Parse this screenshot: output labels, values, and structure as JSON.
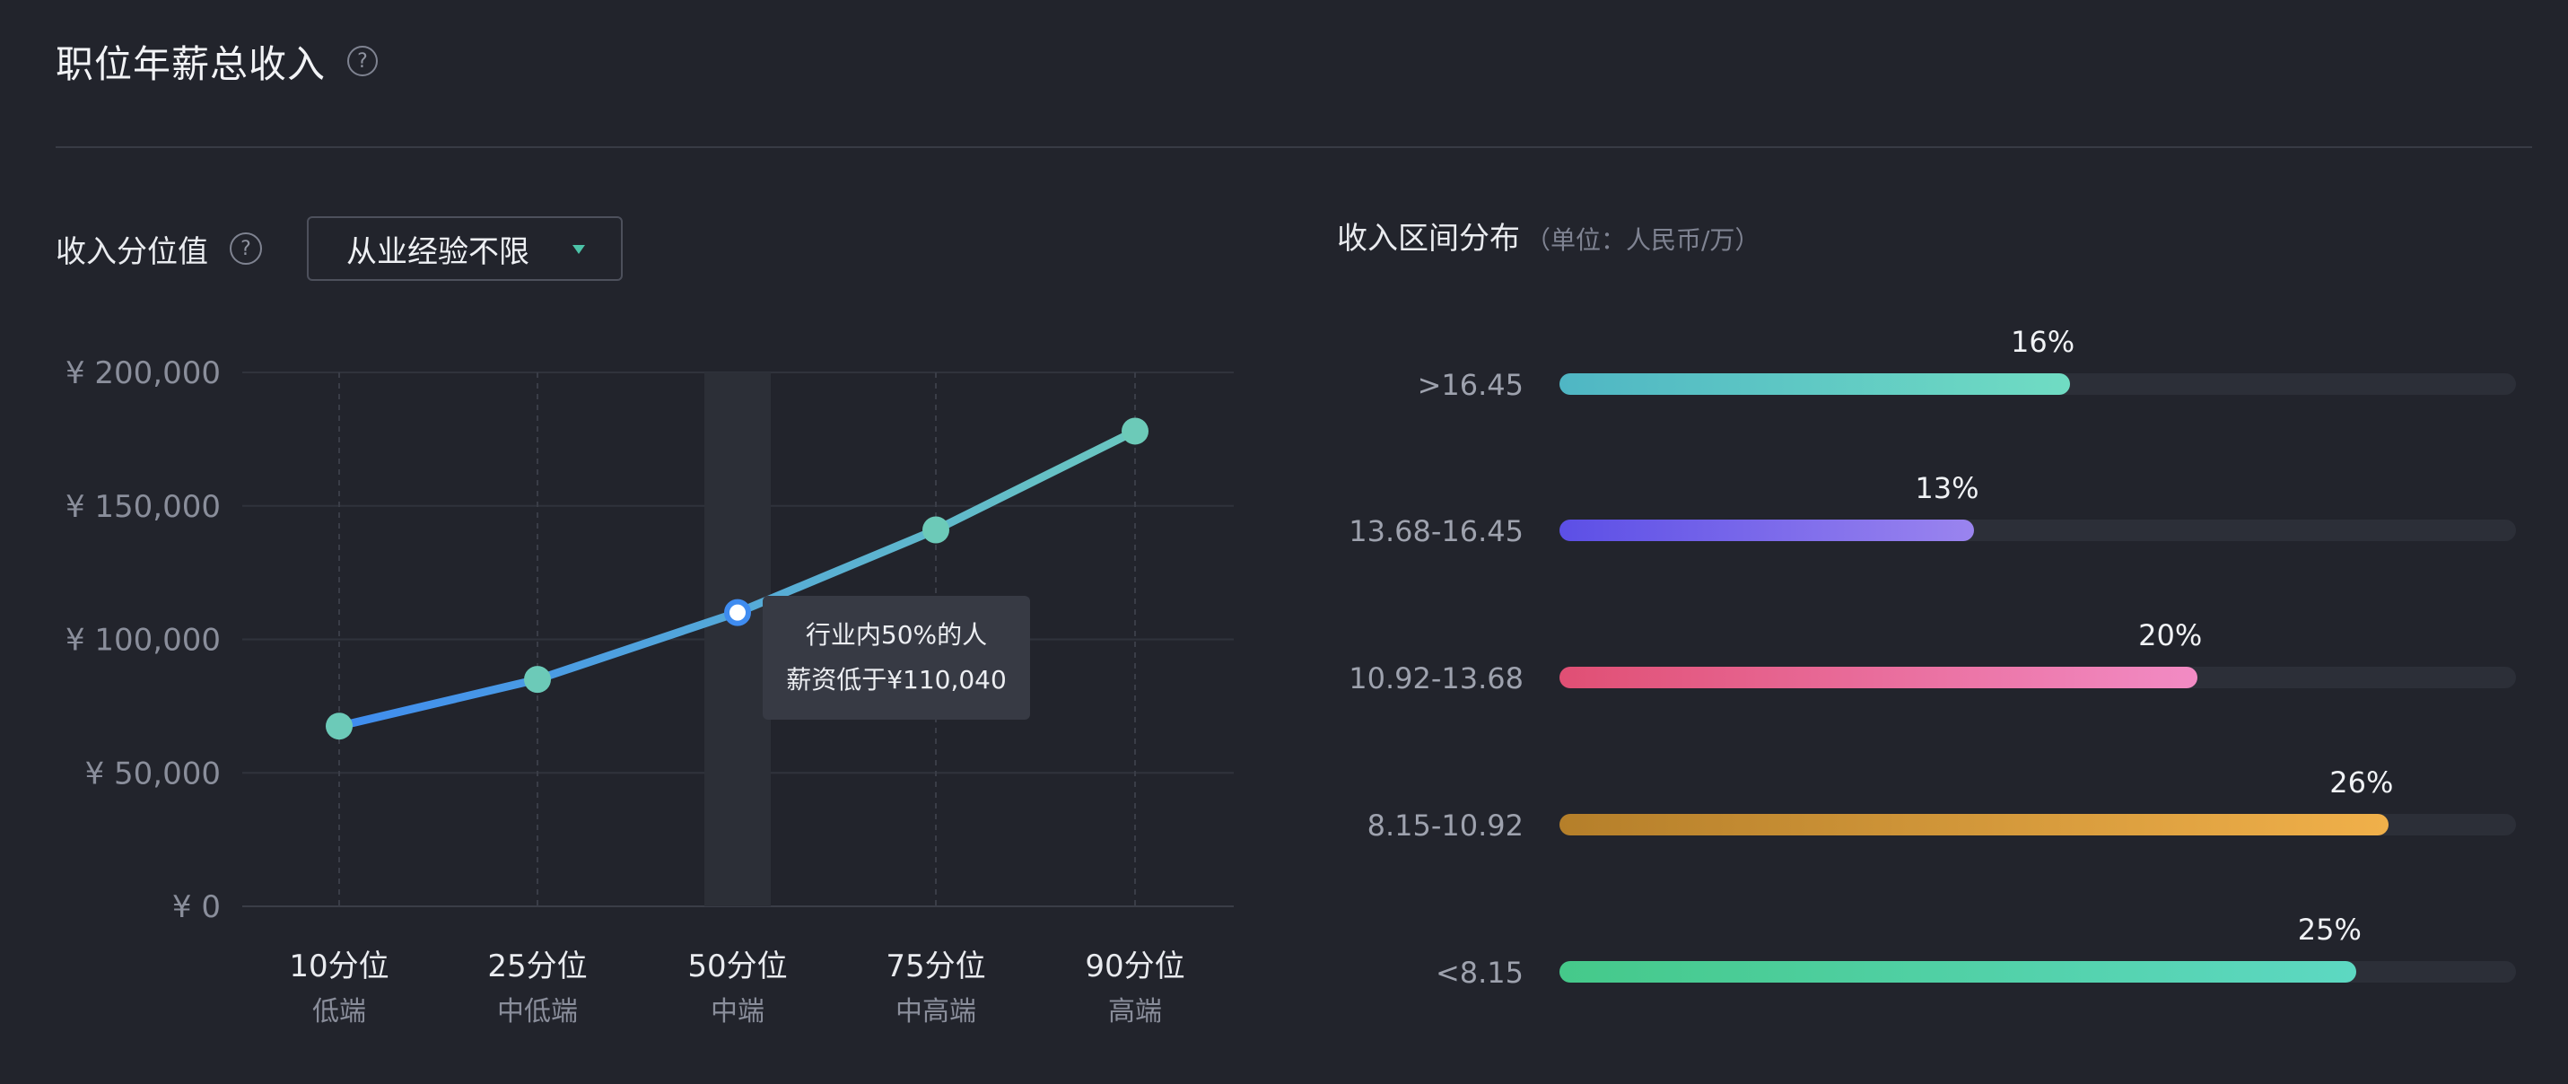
{
  "header": {
    "title": "职位年薪总收入",
    "help": "?"
  },
  "percentile_section": {
    "label": "收入分位值",
    "help": "?",
    "dropdown_value": "从业经验不限"
  },
  "distribution_section": {
    "title": "收入区间分布",
    "unit": "（单位：人民币/万）"
  },
  "tooltip": {
    "line1": "行业内50%的人",
    "line2": "薪资低于¥110,040"
  },
  "chart_data": [
    {
      "type": "line",
      "y_ticks": [
        "¥ 0",
        "¥ 50,000",
        "¥ 100,000",
        "¥ 150,000",
        "¥ 200,000"
      ],
      "ylim": [
        0,
        200000
      ],
      "categories": [
        "10分位",
        "25分位",
        "50分位",
        "75分位",
        "90分位"
      ],
      "sublabels": [
        "低端",
        "中低端",
        "中端",
        "中高端",
        "高端"
      ],
      "values": [
        67500,
        85000,
        110040,
        141000,
        178000
      ],
      "highlight_index": 2,
      "grid": true,
      "colors": {
        "line_start": "#3f8cf0",
        "line_end": "#6ac7c0",
        "point": "#6ccab8",
        "highlight": "#3f8cf0"
      }
    },
    {
      "type": "bar",
      "orientation": "horizontal",
      "categories": [
        ">16.45",
        "13.68-16.45",
        "10.92-13.68",
        "8.15-10.92",
        "<8.15"
      ],
      "values": [
        16,
        13,
        20,
        26,
        25
      ],
      "value_labels": [
        "16%",
        "13%",
        "20%",
        "26%",
        "25%"
      ],
      "max_value": 30,
      "colors": [
        [
          "#4fb6c4",
          "#70dcc3"
        ],
        [
          "#5c4fe6",
          "#9a84ef"
        ],
        [
          "#e04f74",
          "#f28bc4"
        ],
        [
          "#b57f2a",
          "#f0b04a"
        ],
        [
          "#45c98a",
          "#5dd8c2"
        ]
      ]
    }
  ]
}
